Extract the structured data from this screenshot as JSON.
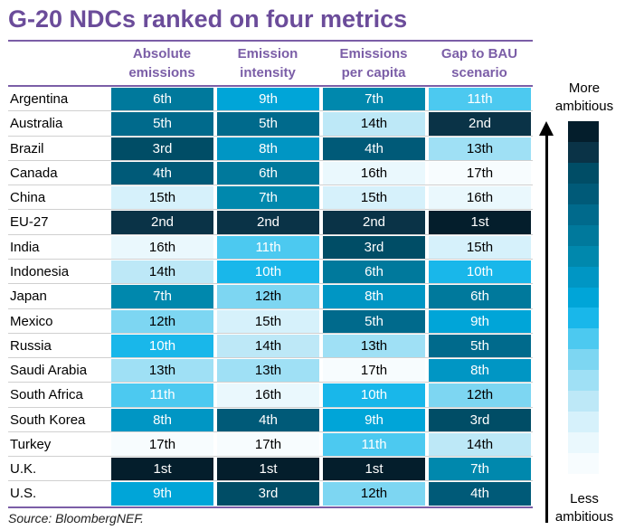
{
  "title": "G-20 NDCs ranked on four metrics",
  "source": "Source: BloombergNEF.",
  "legend": {
    "top_line1": "More",
    "top_line2": "ambitious",
    "bottom_line1": "Less",
    "bottom_line2": "ambitious"
  },
  "colors": {
    "accent": "#7b5ea7",
    "rank_scale": [
      "#041e2c",
      "#0a3347",
      "#004d66",
      "#005a78",
      "#006a8c",
      "#00799c",
      "#0088ad",
      "#0096c4",
      "#00a5d8",
      "#19b7ea",
      "#4cc9f0",
      "#7dd6f2",
      "#9fe0f5",
      "#bde8f7",
      "#d6f1fb",
      "#eaf8fd",
      "#f7fcfe"
    ]
  },
  "chart_data": {
    "type": "table",
    "title": "G-20 NDCs ranked on four metrics",
    "columns": [
      {
        "line1": "Absolute",
        "line2": "emissions"
      },
      {
        "line1": "Emission",
        "line2": "intensity"
      },
      {
        "line1": "Emissions",
        "line2": "per capita"
      },
      {
        "line1": "Gap to BAU",
        "line2": "scenario"
      }
    ],
    "rows": [
      {
        "country": "Argentina",
        "ranks": [
          6,
          9,
          7,
          11
        ]
      },
      {
        "country": "Australia",
        "ranks": [
          5,
          5,
          14,
          2
        ]
      },
      {
        "country": "Brazil",
        "ranks": [
          3,
          8,
          4,
          13
        ]
      },
      {
        "country": "Canada",
        "ranks": [
          4,
          6,
          16,
          17
        ]
      },
      {
        "country": "China",
        "ranks": [
          15,
          7,
          15,
          16
        ]
      },
      {
        "country": "EU-27",
        "ranks": [
          2,
          2,
          2,
          1
        ]
      },
      {
        "country": "India",
        "ranks": [
          16,
          11,
          3,
          15
        ]
      },
      {
        "country": "Indonesia",
        "ranks": [
          14,
          10,
          6,
          10
        ]
      },
      {
        "country": "Japan",
        "ranks": [
          7,
          12,
          8,
          6
        ]
      },
      {
        "country": "Mexico",
        "ranks": [
          12,
          15,
          5,
          9
        ]
      },
      {
        "country": "Russia",
        "ranks": [
          10,
          14,
          13,
          5
        ]
      },
      {
        "country": "Saudi Arabia",
        "ranks": [
          13,
          13,
          17,
          8
        ]
      },
      {
        "country": "South Africa",
        "ranks": [
          11,
          16,
          10,
          12
        ]
      },
      {
        "country": "South Korea",
        "ranks": [
          8,
          4,
          9,
          3
        ]
      },
      {
        "country": "Turkey",
        "ranks": [
          17,
          17,
          11,
          14
        ]
      },
      {
        "country": "U.K.",
        "ranks": [
          1,
          1,
          1,
          7
        ]
      },
      {
        "country": "U.S.",
        "ranks": [
          9,
          3,
          12,
          4
        ]
      }
    ]
  }
}
